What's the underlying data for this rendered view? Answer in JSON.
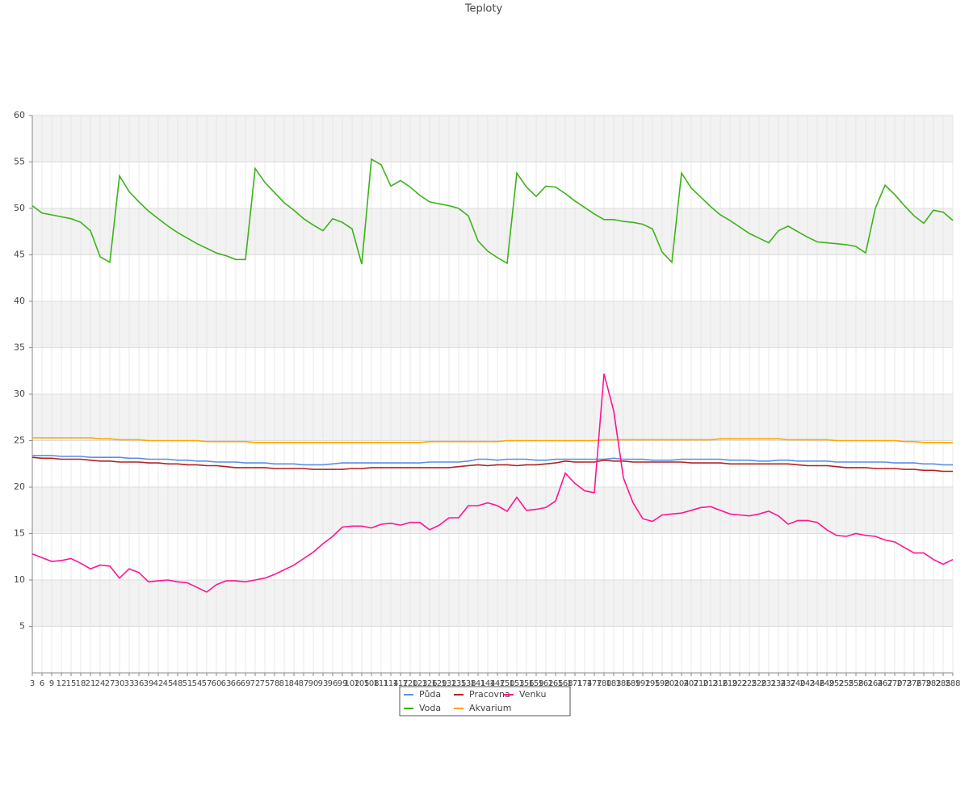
{
  "chart_data": {
    "type": "line",
    "title": "Teploty",
    "categories": [
      "3",
      "6",
      "9",
      "12",
      "15",
      "18",
      "21",
      "24",
      "27",
      "30",
      "33",
      "36",
      "39",
      "42",
      "45",
      "48",
      "51",
      "54",
      "57",
      "60",
      "63",
      "66",
      "69",
      "72",
      "75",
      "78",
      "81",
      "84",
      "87",
      "90",
      "93",
      "96",
      "99",
      "102",
      "105",
      "108",
      "111",
      "114",
      "117",
      "120",
      "123",
      "126",
      "129",
      "132",
      "135",
      "138",
      "141",
      "144",
      "147",
      "150",
      "153",
      "156",
      "159",
      "162",
      "165",
      "168",
      "171",
      "174",
      "177",
      "180",
      "183",
      "186",
      "189",
      "192",
      "195",
      "198",
      "201",
      "204",
      "207",
      "210",
      "213",
      "216",
      "219",
      "222",
      "225",
      "228",
      "231",
      "234",
      "237",
      "240",
      "243",
      "246",
      "249",
      "252",
      "255",
      "258",
      "261",
      "264",
      "267",
      "270",
      "273",
      "276",
      "279",
      "282",
      "285",
      "288"
    ],
    "series": [
      {
        "name": "Půda",
        "color": "#5b8fe6",
        "values": [
          23.4,
          23.4,
          23.4,
          23.3,
          23.3,
          23.3,
          23.2,
          23.2,
          23.2,
          23.2,
          23.1,
          23.1,
          23.0,
          23.0,
          23.0,
          22.9,
          22.9,
          22.8,
          22.8,
          22.7,
          22.7,
          22.7,
          22.6,
          22.6,
          22.6,
          22.5,
          22.5,
          22.5,
          22.4,
          22.4,
          22.4,
          22.5,
          22.6,
          22.6,
          22.6,
          22.6,
          22.6,
          22.6,
          22.6,
          22.6,
          22.6,
          22.7,
          22.7,
          22.7,
          22.7,
          22.8,
          23.0,
          23.0,
          22.9,
          23.0,
          23.0,
          23.0,
          22.9,
          22.9,
          23.0,
          23.0,
          23.0,
          23.0,
          23.0,
          23.0,
          23.1,
          23.0,
          23.0,
          23.0,
          22.9,
          22.9,
          22.9,
          23.0,
          23.0,
          23.0,
          23.0,
          23.0,
          22.9,
          22.9,
          22.9,
          22.8,
          22.8,
          22.9,
          22.9,
          22.8,
          22.8,
          22.8,
          22.8,
          22.7,
          22.7,
          22.7,
          22.7,
          22.7,
          22.7,
          22.6,
          22.6,
          22.6,
          22.5,
          22.5,
          22.4,
          22.4
        ]
      },
      {
        "name": "Voda",
        "color": "#3cb319",
        "values": [
          50.3,
          49.5,
          49.3,
          49.1,
          48.9,
          48.5,
          47.6,
          44.8,
          44.2,
          53.5,
          51.8,
          50.7,
          49.7,
          48.9,
          48.1,
          47.4,
          46.8,
          46.2,
          45.7,
          45.2,
          44.9,
          44.5,
          44.5,
          54.3,
          52.8,
          51.7,
          50.6,
          49.8,
          48.9,
          48.2,
          47.6,
          48.9,
          48.5,
          47.8,
          44.0,
          55.3,
          54.7,
          52.4,
          53.0,
          52.3,
          51.4,
          50.7,
          50.5,
          50.3,
          50.0,
          49.2,
          46.5,
          45.4,
          44.7,
          44.1,
          53.8,
          52.3,
          51.3,
          52.4,
          52.3,
          51.6,
          50.8,
          50.1,
          49.4,
          48.8,
          48.8,
          48.6,
          48.5,
          48.3,
          47.8,
          45.3,
          44.2,
          53.8,
          52.2,
          51.2,
          50.2,
          49.3,
          48.7,
          48.0,
          47.3,
          46.8,
          46.3,
          47.6,
          48.1,
          47.5,
          46.9,
          46.4,
          46.3,
          46.2,
          46.1,
          45.9,
          45.2,
          50.0,
          52.5,
          51.5,
          50.3,
          49.2,
          48.4,
          49.8,
          49.6,
          48.7
        ]
      },
      {
        "name": "Pracovna",
        "color": "#b22222",
        "values": [
          23.2,
          23.1,
          23.1,
          23.0,
          23.0,
          23.0,
          22.9,
          22.8,
          22.8,
          22.7,
          22.7,
          22.7,
          22.6,
          22.6,
          22.5,
          22.5,
          22.4,
          22.4,
          22.3,
          22.3,
          22.2,
          22.1,
          22.1,
          22.1,
          22.1,
          22.0,
          22.0,
          22.0,
          22.0,
          21.9,
          21.9,
          21.9,
          21.9,
          22.0,
          22.0,
          22.1,
          22.1,
          22.1,
          22.1,
          22.1,
          22.1,
          22.1,
          22.1,
          22.1,
          22.2,
          22.3,
          22.4,
          22.3,
          22.4,
          22.4,
          22.3,
          22.4,
          22.4,
          22.5,
          22.6,
          22.8,
          22.7,
          22.7,
          22.7,
          22.9,
          22.8,
          22.8,
          22.7,
          22.7,
          22.7,
          22.7,
          22.7,
          22.7,
          22.6,
          22.6,
          22.6,
          22.6,
          22.5,
          22.5,
          22.5,
          22.5,
          22.5,
          22.5,
          22.5,
          22.4,
          22.3,
          22.3,
          22.3,
          22.2,
          22.1,
          22.1,
          22.1,
          22.0,
          22.0,
          22.0,
          21.9,
          21.9,
          21.8,
          21.8,
          21.7,
          21.7
        ]
      },
      {
        "name": "Akvarium",
        "color": "#ffa500",
        "values": [
          25.3,
          25.3,
          25.3,
          25.3,
          25.3,
          25.3,
          25.3,
          25.2,
          25.2,
          25.1,
          25.1,
          25.1,
          25.0,
          25.0,
          25.0,
          25.0,
          25.0,
          25.0,
          24.9,
          24.9,
          24.9,
          24.9,
          24.9,
          24.8,
          24.8,
          24.8,
          24.8,
          24.8,
          24.8,
          24.8,
          24.8,
          24.8,
          24.8,
          24.8,
          24.8,
          24.8,
          24.8,
          24.8,
          24.8,
          24.8,
          24.8,
          24.9,
          24.9,
          24.9,
          24.9,
          24.9,
          24.9,
          24.9,
          24.9,
          25.0,
          25.0,
          25.0,
          25.0,
          25.0,
          25.0,
          25.0,
          25.0,
          25.0,
          25.0,
          25.1,
          25.1,
          25.1,
          25.1,
          25.1,
          25.1,
          25.1,
          25.1,
          25.1,
          25.1,
          25.1,
          25.1,
          25.2,
          25.2,
          25.2,
          25.2,
          25.2,
          25.2,
          25.2,
          25.1,
          25.1,
          25.1,
          25.1,
          25.1,
          25.0,
          25.0,
          25.0,
          25.0,
          25.0,
          25.0,
          25.0,
          24.9,
          24.9,
          24.8,
          24.8,
          24.8,
          24.8
        ]
      },
      {
        "name": "Venku",
        "color": "#ff1493",
        "values": [
          12.8,
          12.4,
          12.0,
          12.1,
          12.3,
          11.8,
          11.2,
          11.6,
          11.5,
          10.2,
          11.2,
          10.8,
          9.8,
          9.9,
          10.0,
          9.8,
          9.7,
          9.2,
          8.7,
          9.5,
          9.9,
          9.9,
          9.8,
          10.0,
          10.2,
          10.6,
          11.1,
          11.6,
          12.3,
          13.0,
          13.9,
          14.7,
          15.7,
          15.8,
          15.8,
          15.6,
          16.0,
          16.1,
          15.9,
          16.2,
          16.2,
          15.4,
          15.9,
          16.7,
          16.7,
          18.0,
          18.0,
          18.3,
          18.0,
          17.4,
          18.9,
          17.5,
          17.6,
          17.8,
          18.5,
          21.5,
          20.4,
          19.6,
          19.4,
          32.2,
          28.2,
          21.0,
          18.3,
          16.6,
          16.3,
          17.0,
          17.1,
          17.2,
          17.5,
          17.8,
          17.9,
          17.5,
          17.1,
          17.0,
          16.9,
          17.1,
          17.4,
          16.9,
          16.0,
          16.4,
          16.4,
          16.2,
          15.4,
          14.8,
          14.7,
          15.0,
          14.8,
          14.7,
          14.3,
          14.1,
          13.5,
          12.9,
          12.9,
          12.2,
          11.7,
          12.2
        ]
      }
    ],
    "ylim": [
      0,
      60
    ],
    "yticks": [
      5,
      10,
      15,
      20,
      25,
      30,
      35,
      40,
      45,
      50,
      55,
      60
    ],
    "grid": true
  }
}
